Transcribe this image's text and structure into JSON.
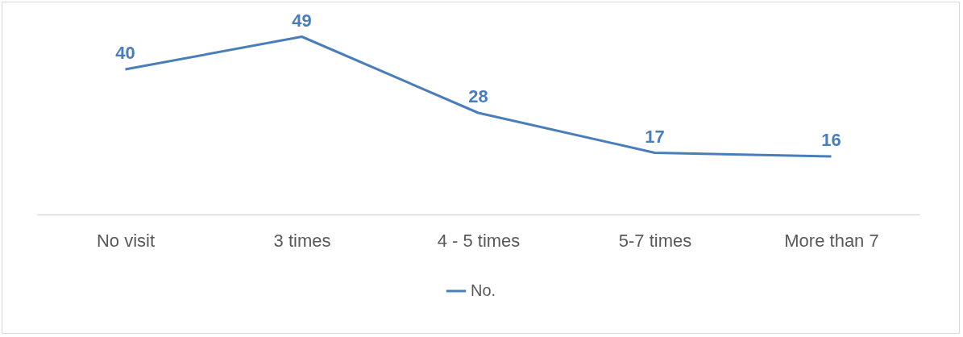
{
  "chart_data": {
    "type": "line",
    "categories": [
      "No visit",
      "3 times",
      "4 - 5 times",
      "5-7 times",
      "More than 7"
    ],
    "series": [
      {
        "name": "No.",
        "color": "#4a7ebb",
        "values": [
          40,
          49,
          28,
          17,
          16
        ]
      }
    ],
    "relative": false,
    "data_labels": true,
    "legend": "bottom",
    "grid": false,
    "line_style": "solid"
  }
}
